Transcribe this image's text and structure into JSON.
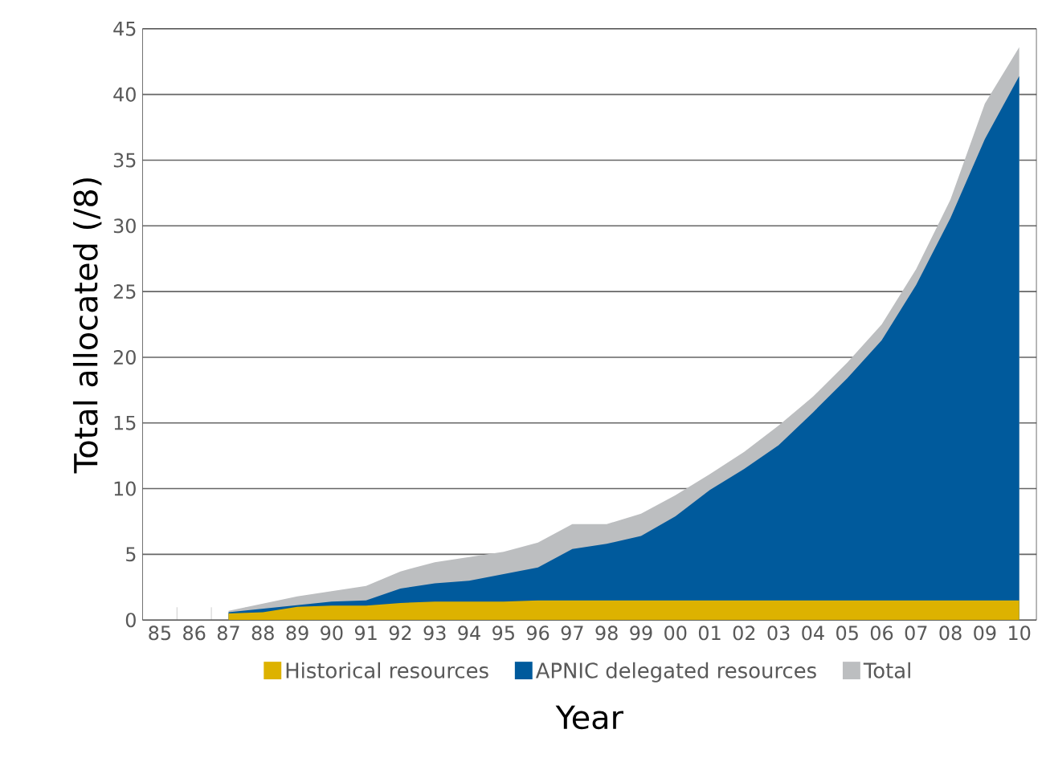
{
  "chart_data": {
    "type": "area",
    "xlabel": "Year",
    "ylabel": "Total allocated (/8)",
    "categories": [
      "85",
      "86",
      "87",
      "88",
      "89",
      "90",
      "91",
      "92",
      "93",
      "94",
      "95",
      "96",
      "97",
      "98",
      "99",
      "00",
      "01",
      "02",
      "03",
      "04",
      "05",
      "06",
      "07",
      "08",
      "09",
      "10"
    ],
    "series": [
      {
        "name": "Historical resources",
        "color": "#ddb200",
        "values": [
          null,
          null,
          0.5,
          0.6,
          1.0,
          1.1,
          1.1,
          1.3,
          1.4,
          1.4,
          1.4,
          1.5,
          1.5,
          1.5,
          1.5,
          1.5,
          1.5,
          1.5,
          1.5,
          1.5,
          1.5,
          1.5,
          1.5,
          1.5,
          1.5,
          1.5
        ]
      },
      {
        "name": "APNIC delegated resources",
        "color": "#005a9c",
        "values": [
          null,
          null,
          0.6,
          null,
          null,
          1.4,
          1.5,
          2.4,
          2.8,
          3.0,
          3.5,
          4.0,
          5.4,
          5.8,
          6.4,
          7.9,
          9.9,
          11.5,
          13.3,
          15.8,
          18.4,
          21.3,
          25.5,
          30.6,
          36.6,
          41.4
        ]
      },
      {
        "name": "Total",
        "color": "#bcbec0",
        "values": [
          null,
          null,
          0.7,
          null,
          1.8,
          2.2,
          2.6,
          3.7,
          4.4,
          4.8,
          5.2,
          5.9,
          7.3,
          7.3,
          8.1,
          9.5,
          11.1,
          12.8,
          14.8,
          17.0,
          19.6,
          22.5,
          26.7,
          32.0,
          39.3,
          43.6
        ]
      }
    ],
    "ylim": [
      0,
      45
    ],
    "yticks": [
      0,
      5,
      10,
      15,
      20,
      25,
      30,
      35,
      40,
      45
    ],
    "grid": "y",
    "legend": "bottom"
  }
}
